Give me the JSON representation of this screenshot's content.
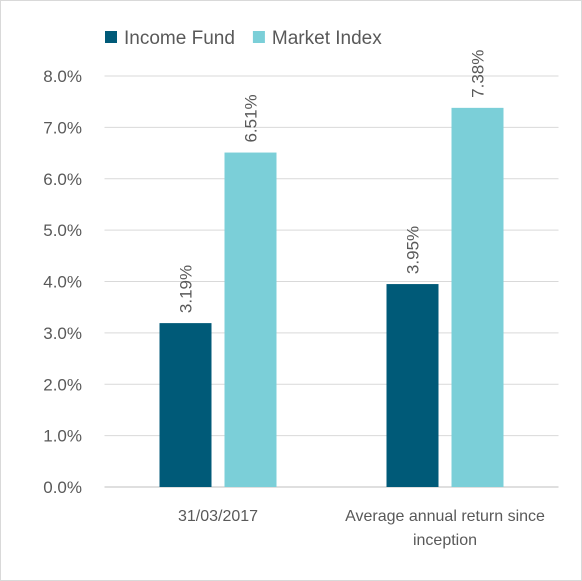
{
  "chart_data": {
    "type": "bar",
    "categories": [
      "31/03/2017",
      "Average annual return since inception"
    ],
    "series": [
      {
        "name": "Income Fund",
        "color": "#005a78",
        "values": [
          3.19,
          3.95
        ],
        "value_labels": [
          "3.19%",
          "3.95%"
        ]
      },
      {
        "name": "Market Index",
        "color": "#7bcfd8",
        "values": [
          6.51,
          7.38
        ],
        "value_labels": [
          "6.51%",
          "7.38%"
        ]
      }
    ],
    "ylim": [
      0,
      8
    ],
    "yticks": [
      {
        "value": 0,
        "label": "0.0%"
      },
      {
        "value": 1,
        "label": "1.0%"
      },
      {
        "value": 2,
        "label": "2.0%"
      },
      {
        "value": 3,
        "label": "3.0%"
      },
      {
        "value": 4,
        "label": "4.0%"
      },
      {
        "value": 5,
        "label": "5.0%"
      },
      {
        "value": 6,
        "label": "6.0%"
      },
      {
        "value": 7,
        "label": "7.0%"
      },
      {
        "value": 8,
        "label": "8.0%"
      }
    ],
    "grid": true,
    "legend": "top"
  }
}
